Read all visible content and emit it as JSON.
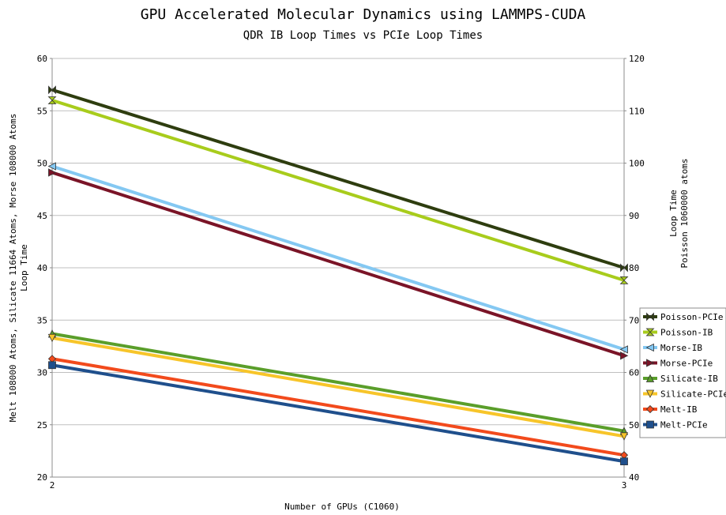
{
  "chart_data": {
    "type": "line",
    "title": "GPU Accelerated Molecular Dynamics using LAMMPS-CUDA",
    "subtitle": "QDR IB Loop Times vs PCIe Loop Times",
    "xlabel": "Number of GPUs  (C1060)",
    "ylabel_left": [
      "Melt 108000 Atoms, Silicate 11664 Atoms, Morse 108000 Atoms",
      "Loop Time"
    ],
    "ylabel_right": [
      "Loop Time",
      "Poisson 1060000 atoms"
    ],
    "categories": [
      "2",
      "3"
    ],
    "ylim_left": [
      20,
      60
    ],
    "yticks_left": [
      20,
      25,
      30,
      35,
      40,
      45,
      50,
      55,
      60
    ],
    "ylim_right": [
      40,
      120
    ],
    "yticks_right": [
      40,
      50,
      60,
      70,
      80,
      90,
      100,
      110,
      120
    ],
    "grid": true,
    "legend_position": "right",
    "series": [
      {
        "name": "Poisson-PCIe",
        "axis": "right",
        "values": [
          114,
          80
        ],
        "color": "#2e3d0f",
        "marker": "bowtie"
      },
      {
        "name": "Poisson-IB",
        "axis": "right",
        "values": [
          112,
          77.6
        ],
        "color": "#a8cc1c",
        "marker": "hourglass"
      },
      {
        "name": "Morse-IB",
        "axis": "left",
        "values": [
          49.7,
          32.2
        ],
        "color": "#84c8f2",
        "marker": "triangle-left"
      },
      {
        "name": "Morse-PCIe",
        "axis": "left",
        "values": [
          49.1,
          31.6
        ],
        "color": "#7a1427",
        "marker": "triangle-right"
      },
      {
        "name": "Silicate-IB",
        "axis": "left",
        "values": [
          33.7,
          24.4
        ],
        "color": "#5a9e2a",
        "marker": "triangle-up"
      },
      {
        "name": "Silicate-PCIe",
        "axis": "left",
        "values": [
          33.3,
          23.9
        ],
        "color": "#f7c52a",
        "marker": "triangle-down"
      },
      {
        "name": "Melt-IB",
        "axis": "left",
        "values": [
          31.3,
          22.1
        ],
        "color": "#f24a1c",
        "marker": "diamond"
      },
      {
        "name": "Melt-PCIe",
        "axis": "left",
        "values": [
          30.7,
          21.5
        ],
        "color": "#1f4f8c",
        "marker": "square"
      }
    ]
  }
}
